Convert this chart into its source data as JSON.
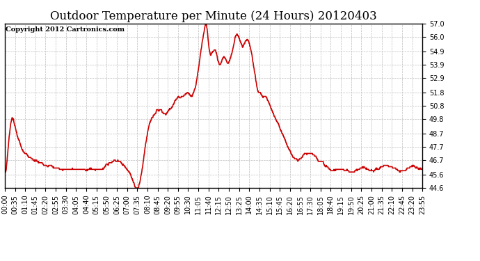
{
  "title": "Outdoor Temperature per Minute (24 Hours) 20120403",
  "copyright_text": "Copyright 2012 Cartronics.com",
  "line_color": "#cc0000",
  "background_color": "#ffffff",
  "plot_background": "#ffffff",
  "grid_color": "#bbbbbb",
  "y_ticks": [
    44.6,
    45.6,
    46.7,
    47.7,
    48.7,
    49.8,
    50.8,
    51.8,
    52.9,
    53.9,
    54.9,
    56.0,
    57.0
  ],
  "y_min": 44.6,
  "y_max": 57.0,
  "x_tick_labels": [
    "00:00",
    "00:35",
    "01:10",
    "01:45",
    "02:20",
    "02:55",
    "03:30",
    "04:05",
    "04:40",
    "05:15",
    "05:50",
    "06:25",
    "07:00",
    "07:35",
    "08:10",
    "08:45",
    "09:20",
    "09:55",
    "10:30",
    "11:05",
    "11:40",
    "12:15",
    "12:50",
    "13:25",
    "14:00",
    "14:35",
    "15:10",
    "15:45",
    "16:20",
    "16:55",
    "17:30",
    "18:05",
    "18:40",
    "19:15",
    "19:50",
    "20:25",
    "21:00",
    "21:35",
    "22:10",
    "22:45",
    "23:20",
    "23:55"
  ],
  "line_width": 1.2,
  "title_fontsize": 12,
  "copyright_fontsize": 7,
  "tick_fontsize": 7,
  "curve": [
    [
      0.0,
      45.8
    ],
    [
      0.05,
      45.8
    ],
    [
      0.08,
      46.0
    ],
    [
      0.15,
      47.0
    ],
    [
      0.25,
      48.5
    ],
    [
      0.35,
      49.5
    ],
    [
      0.42,
      49.9
    ],
    [
      0.5,
      49.8
    ],
    [
      0.58,
      49.3
    ],
    [
      0.67,
      48.8
    ],
    [
      0.75,
      48.4
    ],
    [
      0.83,
      48.1
    ],
    [
      0.92,
      47.8
    ],
    [
      1.0,
      47.5
    ],
    [
      1.17,
      47.2
    ],
    [
      1.33,
      47.0
    ],
    [
      1.5,
      46.8
    ],
    [
      1.67,
      46.7
    ],
    [
      1.83,
      46.6
    ],
    [
      2.0,
      46.5
    ],
    [
      2.25,
      46.4
    ],
    [
      2.5,
      46.3
    ],
    [
      2.75,
      46.2
    ],
    [
      3.0,
      46.1
    ],
    [
      3.25,
      46.0
    ],
    [
      3.5,
      46.0
    ],
    [
      3.75,
      46.0
    ],
    [
      4.0,
      46.0
    ],
    [
      4.25,
      46.0
    ],
    [
      4.5,
      46.0
    ],
    [
      4.75,
      46.0
    ],
    [
      5.0,
      46.0
    ],
    [
      5.25,
      46.0
    ],
    [
      5.5,
      46.0
    ],
    [
      5.67,
      46.1
    ],
    [
      5.83,
      46.3
    ],
    [
      6.0,
      46.5
    ],
    [
      6.17,
      46.6
    ],
    [
      6.33,
      46.7
    ],
    [
      6.5,
      46.7
    ],
    [
      6.58,
      46.6
    ],
    [
      6.67,
      46.5
    ],
    [
      6.75,
      46.4
    ],
    [
      6.83,
      46.3
    ],
    [
      6.92,
      46.2
    ],
    [
      7.0,
      46.1
    ],
    [
      7.08,
      46.0
    ],
    [
      7.17,
      45.8
    ],
    [
      7.25,
      45.5
    ],
    [
      7.33,
      45.2
    ],
    [
      7.42,
      44.9
    ],
    [
      7.5,
      44.7
    ],
    [
      7.58,
      44.6
    ],
    [
      7.67,
      44.6
    ],
    [
      7.75,
      45.0
    ],
    [
      7.83,
      45.5
    ],
    [
      7.92,
      46.2
    ],
    [
      8.0,
      47.0
    ],
    [
      8.08,
      47.8
    ],
    [
      8.17,
      48.5
    ],
    [
      8.25,
      49.1
    ],
    [
      8.33,
      49.5
    ],
    [
      8.42,
      49.8
    ],
    [
      8.5,
      50.0
    ],
    [
      8.58,
      50.2
    ],
    [
      8.67,
      50.3
    ],
    [
      8.75,
      50.5
    ],
    [
      8.83,
      50.4
    ],
    [
      8.92,
      50.5
    ],
    [
      9.0,
      50.5
    ],
    [
      9.08,
      50.3
    ],
    [
      9.17,
      50.2
    ],
    [
      9.25,
      50.2
    ],
    [
      9.33,
      50.3
    ],
    [
      9.42,
      50.4
    ],
    [
      9.5,
      50.5
    ],
    [
      9.58,
      50.6
    ],
    [
      9.67,
      50.8
    ],
    [
      9.75,
      51.0
    ],
    [
      9.83,
      51.2
    ],
    [
      9.92,
      51.4
    ],
    [
      10.0,
      51.5
    ],
    [
      10.08,
      51.4
    ],
    [
      10.17,
      51.4
    ],
    [
      10.25,
      51.5
    ],
    [
      10.33,
      51.6
    ],
    [
      10.42,
      51.7
    ],
    [
      10.5,
      51.8
    ],
    [
      10.58,
      51.7
    ],
    [
      10.67,
      51.6
    ],
    [
      10.75,
      51.5
    ],
    [
      10.83,
      51.7
    ],
    [
      10.92,
      52.0
    ],
    [
      11.0,
      52.5
    ],
    [
      11.08,
      53.2
    ],
    [
      11.17,
      54.0
    ],
    [
      11.25,
      54.8
    ],
    [
      11.33,
      55.5
    ],
    [
      11.42,
      56.2
    ],
    [
      11.5,
      56.8
    ],
    [
      11.55,
      57.0
    ],
    [
      11.58,
      57.0
    ],
    [
      11.62,
      56.7
    ],
    [
      11.67,
      56.0
    ],
    [
      11.75,
      55.0
    ],
    [
      11.83,
      54.5
    ],
    [
      11.92,
      54.8
    ],
    [
      12.0,
      55.0
    ],
    [
      12.08,
      55.1
    ],
    [
      12.17,
      54.8
    ],
    [
      12.25,
      54.2
    ],
    [
      12.33,
      53.9
    ],
    [
      12.42,
      54.0
    ],
    [
      12.5,
      54.3
    ],
    [
      12.58,
      54.5
    ],
    [
      12.67,
      54.4
    ],
    [
      12.75,
      54.1
    ],
    [
      12.83,
      54.0
    ],
    [
      12.92,
      54.2
    ],
    [
      13.0,
      54.5
    ],
    [
      13.08,
      55.0
    ],
    [
      13.17,
      55.5
    ],
    [
      13.25,
      56.0
    ],
    [
      13.33,
      56.2
    ],
    [
      13.42,
      56.1
    ],
    [
      13.5,
      55.8
    ],
    [
      13.58,
      55.5
    ],
    [
      13.67,
      55.2
    ],
    [
      13.75,
      55.5
    ],
    [
      13.83,
      55.7
    ],
    [
      13.92,
      55.8
    ],
    [
      14.0,
      55.7
    ],
    [
      14.08,
      55.3
    ],
    [
      14.17,
      54.8
    ],
    [
      14.25,
      54.2
    ],
    [
      14.33,
      53.5
    ],
    [
      14.42,
      52.8
    ],
    [
      14.5,
      52.2
    ],
    [
      14.58,
      51.8
    ],
    [
      14.67,
      51.8
    ],
    [
      14.75,
      51.6
    ],
    [
      14.83,
      51.5
    ],
    [
      15.0,
      51.5
    ],
    [
      15.08,
      51.3
    ],
    [
      15.17,
      51.0
    ],
    [
      15.25,
      50.8
    ],
    [
      15.33,
      50.5
    ],
    [
      15.5,
      50.0
    ],
    [
      15.67,
      49.5
    ],
    [
      15.83,
      49.0
    ],
    [
      16.0,
      48.5
    ],
    [
      16.17,
      48.0
    ],
    [
      16.33,
      47.5
    ],
    [
      16.5,
      47.0
    ],
    [
      16.67,
      46.8
    ],
    [
      16.83,
      46.7
    ],
    [
      17.0,
      46.8
    ],
    [
      17.17,
      47.0
    ],
    [
      17.33,
      47.2
    ],
    [
      17.5,
      47.3
    ],
    [
      17.67,
      47.2
    ],
    [
      17.83,
      47.0
    ],
    [
      18.0,
      46.8
    ],
    [
      18.17,
      46.6
    ],
    [
      18.33,
      46.4
    ],
    [
      18.5,
      46.2
    ],
    [
      18.67,
      46.0
    ],
    [
      18.83,
      45.9
    ],
    [
      19.0,
      45.9
    ],
    [
      19.17,
      46.0
    ],
    [
      19.33,
      46.1
    ],
    [
      19.5,
      46.0
    ],
    [
      19.67,
      45.9
    ],
    [
      19.83,
      45.8
    ],
    [
      20.0,
      45.8
    ],
    [
      20.17,
      45.9
    ],
    [
      20.33,
      46.0
    ],
    [
      20.5,
      46.1
    ],
    [
      20.67,
      46.1
    ],
    [
      20.83,
      46.0
    ],
    [
      21.0,
      45.9
    ],
    [
      21.17,
      45.9
    ],
    [
      21.33,
      46.0
    ],
    [
      21.5,
      46.1
    ],
    [
      21.67,
      46.2
    ],
    [
      21.83,
      46.3
    ],
    [
      22.0,
      46.3
    ],
    [
      22.17,
      46.2
    ],
    [
      22.33,
      46.1
    ],
    [
      22.5,
      46.0
    ],
    [
      22.67,
      45.9
    ],
    [
      22.83,
      45.9
    ],
    [
      23.0,
      46.0
    ],
    [
      23.17,
      46.1
    ],
    [
      23.33,
      46.2
    ],
    [
      23.5,
      46.2
    ],
    [
      23.67,
      46.1
    ],
    [
      23.83,
      46.0
    ],
    [
      24.0,
      46.0
    ]
  ]
}
